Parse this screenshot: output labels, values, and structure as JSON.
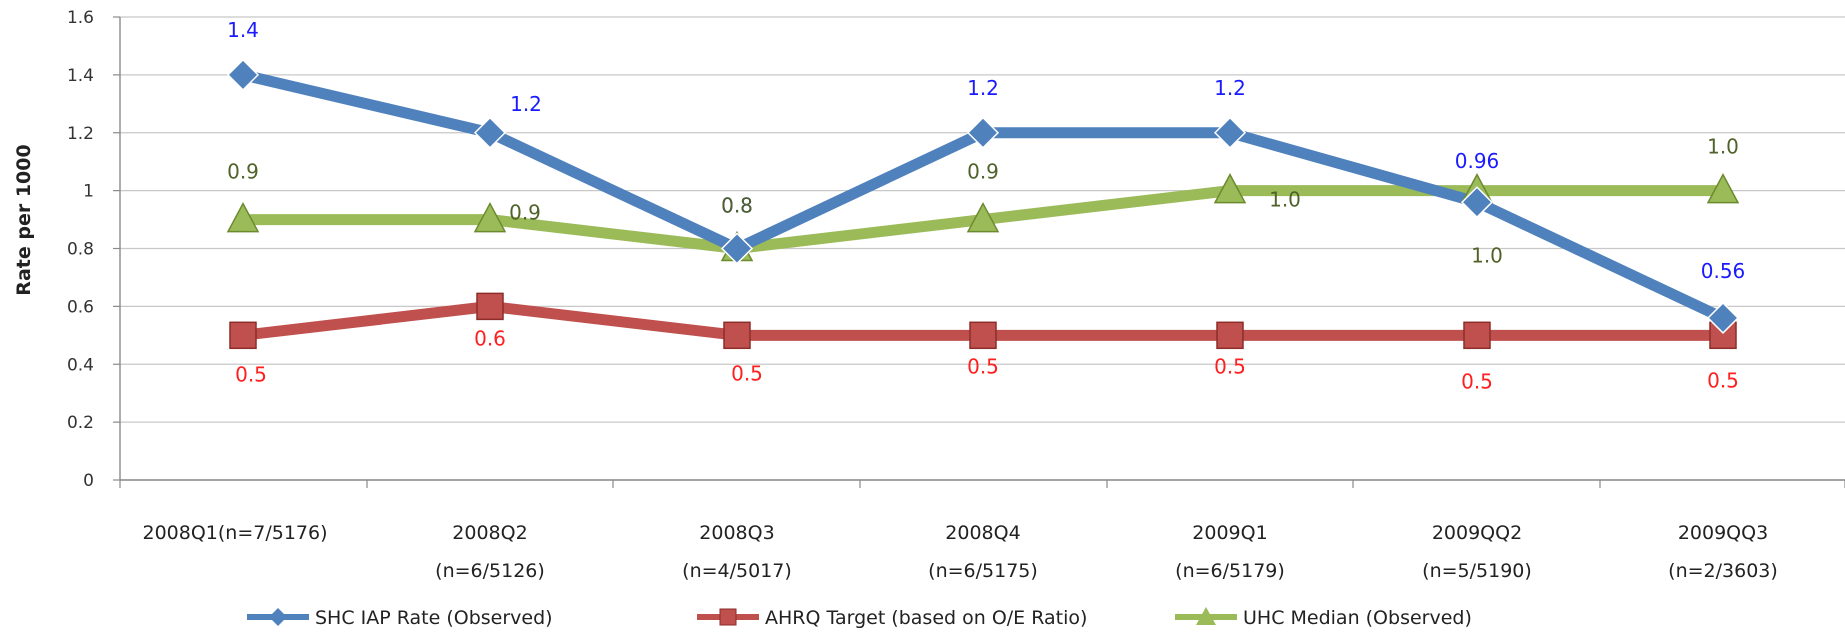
{
  "chart_data": {
    "type": "line",
    "title": "",
    "xlabel": "",
    "ylabel": "Rate per 1000",
    "ylim": [
      0,
      1.6
    ],
    "yticks": [
      "0",
      "0.2",
      "0.4",
      "0.6",
      "0.8",
      "1",
      "1.2",
      "1.4",
      "1.6"
    ],
    "grid": "horizontal",
    "legend_position": "bottom",
    "categories": [
      [
        "2008Q1(n=7/5176)"
      ],
      [
        "2008Q2",
        "(n=6/5126)"
      ],
      [
        "2008Q3",
        "(n=4/5017)"
      ],
      [
        "2008Q4",
        "(n=6/5175)"
      ],
      [
        "2009Q1",
        "(n=6/5179)"
      ],
      [
        "2009QQ2",
        "(n=5/5190)"
      ],
      [
        "2009QQ3",
        "(n=2/3603)"
      ]
    ],
    "series": [
      {
        "name": "SHC IAP Rate (Observed)",
        "color": "#4f81bd",
        "label_color": "#1a1aff",
        "marker": "diamond",
        "values": [
          1.4,
          1.2,
          0.8,
          1.2,
          1.2,
          0.96,
          0.56
        ],
        "labels": [
          "1.4",
          "1.2",
          "0.8",
          "1.2",
          "1.2",
          "0.96",
          "0.56"
        ]
      },
      {
        "name": "AHRQ Target (based on O/E Ratio)",
        "color": "#c0504d",
        "label_color": "#ff1f1f",
        "marker": "square",
        "values": [
          0.5,
          0.6,
          0.5,
          0.5,
          0.5,
          0.5,
          0.5
        ],
        "labels": [
          "0.5",
          "0.6",
          "0.5",
          "0.5",
          "0.5",
          "0.5",
          "0.5"
        ]
      },
      {
        "name": "UHC Median (Observed)",
        "color": "#9bbb59",
        "label_color": "#4f6228",
        "marker": "triangle",
        "values": [
          0.9,
          0.9,
          0.8,
          0.9,
          1.0,
          1.0,
          1.0
        ],
        "labels": [
          "0.9",
          "0.9",
          "0.8",
          "0.9",
          "1.0",
          "1.0",
          "1.0"
        ]
      }
    ]
  }
}
